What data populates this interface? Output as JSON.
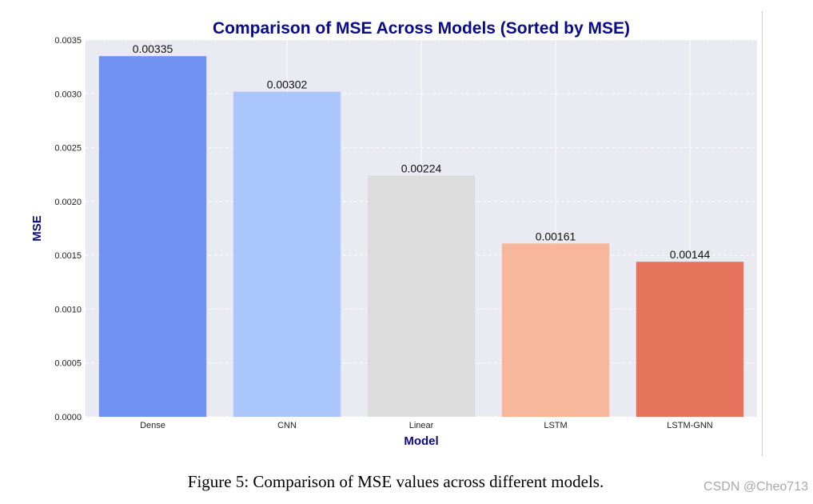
{
  "chart_data": {
    "type": "bar",
    "title": "Comparison of MSE Across Models (Sorted by MSE)",
    "xlabel": "Model",
    "ylabel": "MSE",
    "categories": [
      "Dense",
      "CNN",
      "Linear",
      "LSTM",
      "LSTM-GNN"
    ],
    "values": [
      0.00335,
      0.00302,
      0.00224,
      0.00161,
      0.00144
    ],
    "value_labels": [
      "0.00335",
      "0.00302",
      "0.00224",
      "0.00161",
      "0.00144"
    ],
    "bar_colors": [
      "#7092f2",
      "#aac6fb",
      "#dcdcdc",
      "#f6b79b",
      "#e6735c"
    ],
    "ylim": [
      0,
      0.0035
    ],
    "yticks": [
      0,
      0.0005,
      0.001,
      0.0015,
      0.002,
      0.0025,
      0.003,
      0.0035
    ],
    "ytick_labels": [
      "0.0000",
      "0.0005",
      "0.0010",
      "0.0015",
      "0.0020",
      "0.0025",
      "0.0030",
      "0.0035"
    ],
    "grid": true,
    "colors": {
      "background": "#eaeaf2",
      "title": "#0a0a8a",
      "grid": "#ffffff"
    }
  },
  "caption": "Figure 5: Comparison of MSE values across different models.",
  "watermark": "CSDN @Cheo713"
}
